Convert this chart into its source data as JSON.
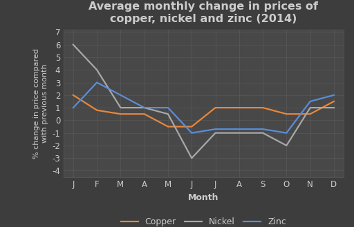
{
  "months": [
    "J",
    "F",
    "M",
    "A",
    "M",
    "J",
    "J",
    "A",
    "S",
    "O",
    "N",
    "D"
  ],
  "copper": [
    2.0,
    0.8,
    0.5,
    0.5,
    -0.5,
    -0.5,
    1.0,
    1.0,
    1.0,
    0.5,
    0.5,
    1.5
  ],
  "nickel": [
    6.0,
    4.0,
    1.0,
    1.0,
    0.5,
    -3.0,
    -1.0,
    -1.0,
    -1.0,
    -2.0,
    1.0,
    1.0
  ],
  "zinc": [
    1.0,
    3.0,
    2.0,
    1.0,
    1.0,
    -1.0,
    -0.7,
    -0.7,
    -0.7,
    -1.0,
    1.5,
    2.0
  ],
  "title": "Average monthly change in prices of\ncopper, nickel and zinc (2014)",
  "xlabel": "Month",
  "ylabel": "% change in price compared\nwith previous month",
  "ylim": [
    -4.5,
    7.2
  ],
  "yticks": [
    -4,
    -3,
    -2,
    -1,
    0,
    1,
    2,
    3,
    4,
    5,
    6,
    7
  ],
  "ytick_labels": [
    "-4",
    "-3",
    "-2",
    "-1",
    "0",
    "1",
    "2",
    "3",
    "4",
    "5",
    "6",
    "7"
  ],
  "copper_color": "#e8873a",
  "nickel_color": "#a8a8a8",
  "zinc_color": "#5b8dd9",
  "background_color": "#3d3d3d",
  "plot_bg_color": "#484848",
  "text_color": "#cccccc",
  "grid_color": "#5c5c5c",
  "title_fontsize": 11.5,
  "label_fontsize": 9,
  "tick_fontsize": 8.5,
  "legend_fontsize": 9,
  "line_width": 1.6
}
